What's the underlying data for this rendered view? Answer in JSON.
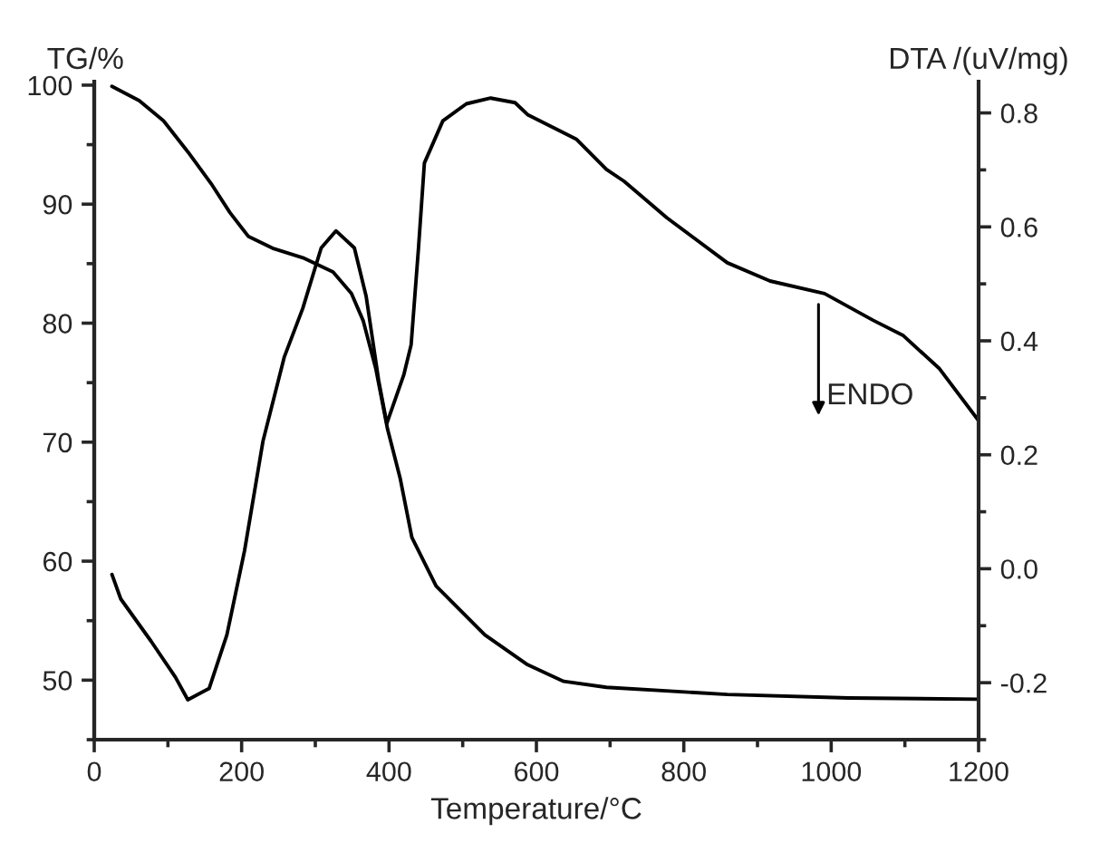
{
  "chart_data": {
    "type": "line",
    "xlabel": "Temperature/°C",
    "ylabel": "TG/%",
    "y2label": "DTA /(uV/mg)",
    "xlim": [
      0,
      1200
    ],
    "xticks": [
      0,
      200,
      400,
      600,
      800,
      1000,
      1200
    ],
    "ylim": [
      45,
      100.3
    ],
    "yticks": [
      50,
      60,
      70,
      80,
      90,
      100
    ],
    "y2lim": [
      -0.3,
      0.855
    ],
    "y2ticks": [
      -0.2,
      {
        "value": 0,
        "label": "0.0"
      },
      0.2,
      0.4,
      0.6,
      0.8
    ],
    "grid": false,
    "legend": false,
    "line_style": "solid",
    "marker": "none",
    "series": [
      {
        "color": "#000000",
        "x": [
          24,
          61,
          94,
          127,
          160,
          184,
          209,
          242,
          283,
          324,
          349,
          365,
          382,
          398,
          415,
          431,
          464,
          530,
          588,
          637,
          695,
          859,
          1024,
          1200
        ],
        "values": [
          99.9,
          98.7,
          97.0,
          94.4,
          91.6,
          89.3,
          87.3,
          86.3,
          85.5,
          84.3,
          82.5,
          80.2,
          76.2,
          71.1,
          67.0,
          62.0,
          57.9,
          53.8,
          51.3,
          49.9,
          49.4,
          48.8,
          48.5,
          48.4
        ]
      },
      {
        "color": "#000000",
        "axis": "y2",
        "x": [
          24,
          36,
          77,
          110,
          127,
          156,
          180,
          204,
          229,
          258,
          283,
          308,
          328,
          353,
          369,
          386,
          397,
          420,
          430,
          440,
          448,
          473,
          505,
          538,
          571,
          588,
          637,
          654,
          695,
          719,
          777,
          859,
          917,
          991,
          1057,
          1098,
          1147,
          1200
        ],
        "values": [
          -0.01,
          -0.053,
          -0.127,
          -0.19,
          -0.23,
          -0.21,
          -0.116,
          0.032,
          0.224,
          0.372,
          0.457,
          0.563,
          0.593,
          0.563,
          0.478,
          0.33,
          0.255,
          0.34,
          0.393,
          0.563,
          0.712,
          0.786,
          0.816,
          0.826,
          0.818,
          0.797,
          0.765,
          0.754,
          0.701,
          0.68,
          0.616,
          0.537,
          0.505,
          0.483,
          0.436,
          0.409,
          0.351,
          0.26
        ]
      }
    ],
    "annotations": [
      "ENDO"
    ]
  }
}
